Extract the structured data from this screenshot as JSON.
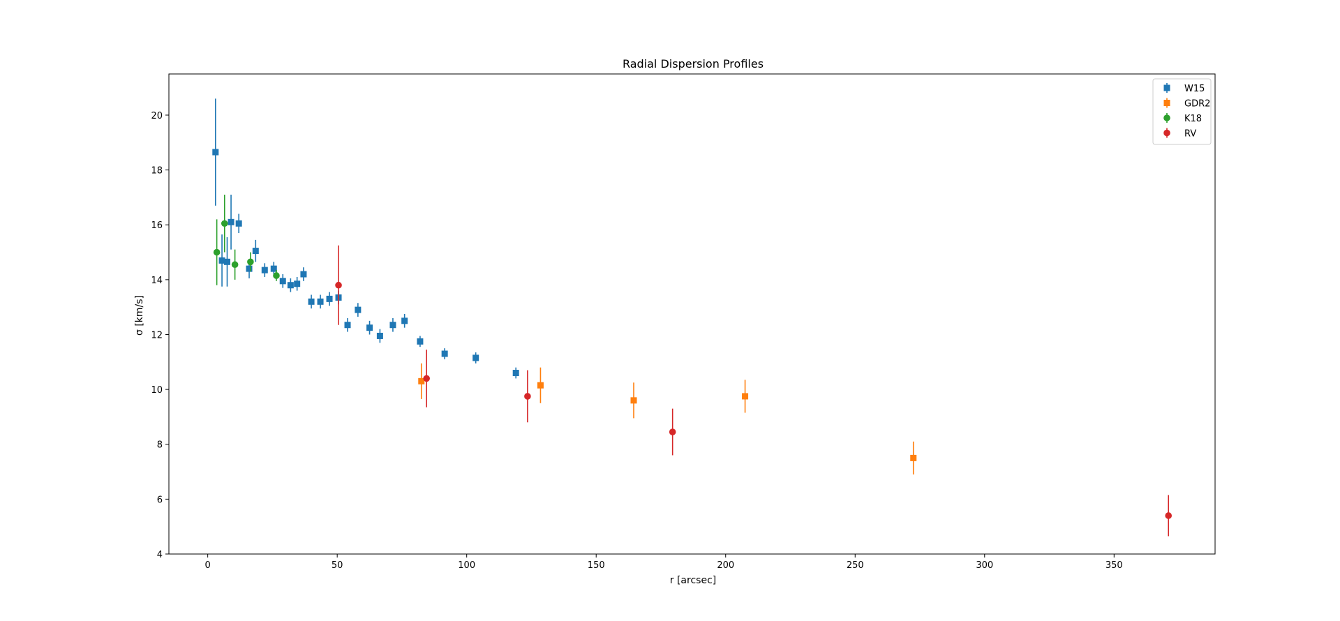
{
  "chart_data": {
    "type": "scatter",
    "title": "Radial Dispersion Profiles",
    "xlabel": "r [arcsec]",
    "ylabel": "σ [km/s]",
    "xlim": [
      -15,
      389
    ],
    "ylim": [
      4,
      21.5
    ],
    "xticks": [
      0,
      50,
      100,
      150,
      200,
      250,
      300,
      350
    ],
    "yticks": [
      4,
      6,
      8,
      10,
      12,
      14,
      16,
      18,
      20
    ],
    "grid": false,
    "legend": "top-right",
    "series": [
      {
        "name": "W15",
        "color": "#1f77b4",
        "marker": "square",
        "points": [
          {
            "x": 3,
            "y": 18.65,
            "err": 1.95
          },
          {
            "x": 5.5,
            "y": 14.7,
            "err": 0.95
          },
          {
            "x": 7.5,
            "y": 14.65,
            "err": 0.9
          },
          {
            "x": 9,
            "y": 16.1,
            "err": 1.0
          },
          {
            "x": 12,
            "y": 16.05,
            "err": 0.35
          },
          {
            "x": 16,
            "y": 14.4,
            "err": 0.35
          },
          {
            "x": 18.5,
            "y": 15.05,
            "err": 0.4
          },
          {
            "x": 22,
            "y": 14.35,
            "err": 0.25
          },
          {
            "x": 25.5,
            "y": 14.4,
            "err": 0.25
          },
          {
            "x": 29,
            "y": 13.95,
            "err": 0.25
          },
          {
            "x": 32,
            "y": 13.8,
            "err": 0.25
          },
          {
            "x": 34.5,
            "y": 13.85,
            "err": 0.25
          },
          {
            "x": 37,
            "y": 14.2,
            "err": 0.25
          },
          {
            "x": 40,
            "y": 13.2,
            "err": 0.25
          },
          {
            "x": 43.5,
            "y": 13.2,
            "err": 0.25
          },
          {
            "x": 47,
            "y": 13.3,
            "err": 0.25
          },
          {
            "x": 50.5,
            "y": 13.35,
            "err": 0.25
          },
          {
            "x": 54,
            "y": 12.35,
            "err": 0.25
          },
          {
            "x": 58,
            "y": 12.9,
            "err": 0.25
          },
          {
            "x": 62.5,
            "y": 12.25,
            "err": 0.25
          },
          {
            "x": 66.5,
            "y": 11.95,
            "err": 0.25
          },
          {
            "x": 71.5,
            "y": 12.35,
            "err": 0.25
          },
          {
            "x": 76,
            "y": 12.5,
            "err": 0.25
          },
          {
            "x": 82,
            "y": 11.75,
            "err": 0.2
          },
          {
            "x": 91.5,
            "y": 11.3,
            "err": 0.2
          },
          {
            "x": 103.5,
            "y": 11.15,
            "err": 0.2
          },
          {
            "x": 119,
            "y": 10.6,
            "err": 0.2
          }
        ]
      },
      {
        "name": "GDR2",
        "color": "#ff7f0e",
        "marker": "square",
        "points": [
          {
            "x": 82.5,
            "y": 10.3,
            "err": 0.65
          },
          {
            "x": 128.5,
            "y": 10.15,
            "err": 0.65
          },
          {
            "x": 164.5,
            "y": 9.6,
            "err": 0.65
          },
          {
            "x": 207.5,
            "y": 9.75,
            "err": 0.6
          },
          {
            "x": 272.5,
            "y": 7.5,
            "err": 0.6
          }
        ]
      },
      {
        "name": "K18",
        "color": "#2ca02c",
        "marker": "circle",
        "points": [
          {
            "x": 3.5,
            "y": 15.0,
            "err": 1.2
          },
          {
            "x": 6.5,
            "y": 16.05,
            "err": 1.05
          },
          {
            "x": 10.5,
            "y": 14.55,
            "err": 0.55
          },
          {
            "x": 16.5,
            "y": 14.65,
            "err": 0.35
          },
          {
            "x": 26.5,
            "y": 14.15,
            "err": 0.2
          }
        ]
      },
      {
        "name": "RV",
        "color": "#d62728",
        "marker": "circle",
        "points": [
          {
            "x": 50.5,
            "y": 13.8,
            "err": 1.45
          },
          {
            "x": 84.5,
            "y": 10.4,
            "err": 1.05
          },
          {
            "x": 123.5,
            "y": 9.75,
            "err": 0.95
          },
          {
            "x": 179.5,
            "y": 8.45,
            "err": 0.85
          },
          {
            "x": 371,
            "y": 5.4,
            "err": 0.75
          }
        ]
      }
    ]
  }
}
